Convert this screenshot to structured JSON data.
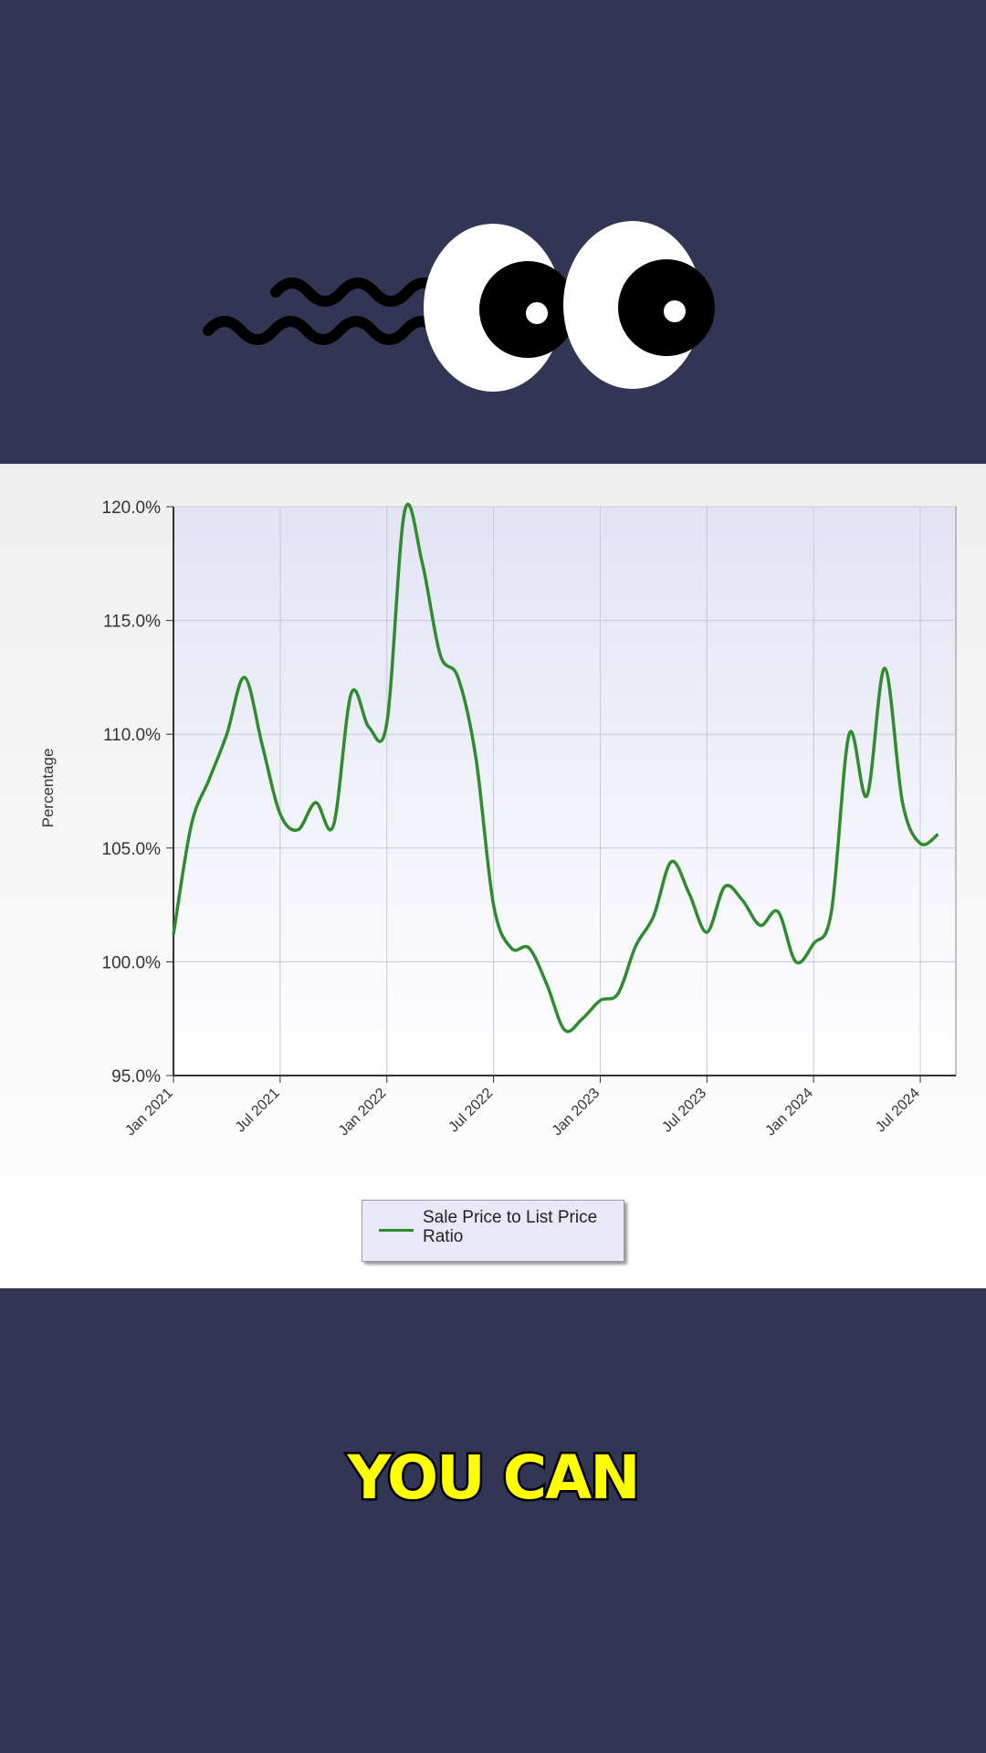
{
  "chart_data": {
    "type": "line",
    "y_label": "Percentage",
    "x": [
      "2021-01",
      "2021-02",
      "2021-03",
      "2021-04",
      "2021-05",
      "2021-06",
      "2021-07",
      "2021-08",
      "2021-09",
      "2021-10",
      "2021-11",
      "2021-12",
      "2022-01",
      "2022-02",
      "2022-03",
      "2022-04",
      "2022-05",
      "2022-06",
      "2022-07",
      "2022-08",
      "2022-09",
      "2022-10",
      "2022-11",
      "2022-12",
      "2023-01",
      "2023-02",
      "2023-03",
      "2023-04",
      "2023-05",
      "2023-06",
      "2023-07",
      "2023-08",
      "2023-09",
      "2023-10",
      "2023-11",
      "2023-12",
      "2024-01",
      "2024-02",
      "2024-03",
      "2024-04",
      "2024-05",
      "2024-06",
      "2024-07",
      "2024-08"
    ],
    "series": [
      {
        "name": "Sale Price to List Price Ratio",
        "color": "#2e8b2e",
        "values": [
          101.2,
          106.0,
          108.0,
          110.0,
          112.5,
          109.5,
          106.5,
          105.8,
          107.0,
          106.0,
          111.8,
          110.3,
          110.5,
          119.8,
          117.5,
          113.5,
          112.5,
          109.0,
          102.5,
          100.6,
          100.6,
          99.0,
          97.0,
          97.5,
          98.3,
          98.6,
          100.7,
          102.0,
          104.4,
          103.0,
          101.3,
          103.3,
          102.7,
          101.6,
          102.2,
          100.0,
          100.8,
          102.2,
          110.0,
          107.3,
          112.9,
          107.0,
          105.2,
          105.6
        ]
      }
    ],
    "xlim": [
      "2021-01",
      "2024-09"
    ],
    "xticks": [
      {
        "value": "2021-01",
        "label": "Jan 2021"
      },
      {
        "value": "2021-07",
        "label": "Jul 2021"
      },
      {
        "value": "2022-01",
        "label": "Jan 2022"
      },
      {
        "value": "2022-07",
        "label": "Jul 2022"
      },
      {
        "value": "2023-01",
        "label": "Jan 2023"
      },
      {
        "value": "2023-07",
        "label": "Jul 2023"
      },
      {
        "value": "2024-01",
        "label": "Jan 2024"
      },
      {
        "value": "2024-07",
        "label": "Jul 2024"
      }
    ],
    "ylim": [
      95,
      120
    ],
    "yticks": [
      {
        "value": 95,
        "label": "95.0%"
      },
      {
        "value": 100,
        "label": "100.0%"
      },
      {
        "value": 105,
        "label": "105.0%"
      },
      {
        "value": 110,
        "label": "110.0%"
      },
      {
        "value": 115,
        "label": "115.0%"
      },
      {
        "value": 120,
        "label": "120.0%"
      }
    ],
    "grid": true
  },
  "caption": "YOU CAN"
}
